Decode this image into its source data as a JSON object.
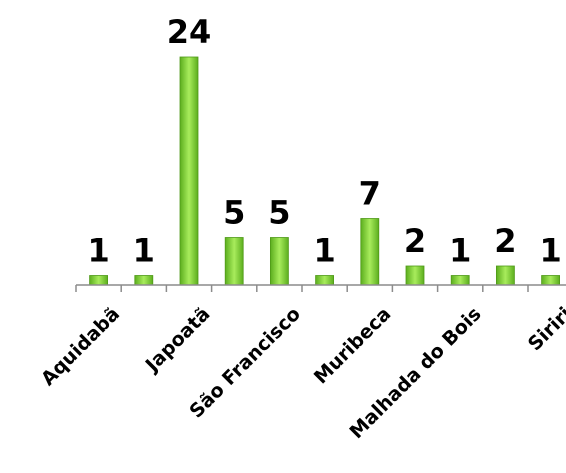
{
  "chart_data": {
    "type": "bar",
    "title": "",
    "xlabel": "",
    "ylabel": "",
    "categories": [
      "Aquidabã",
      "",
      "Japoatã",
      "",
      "São Francisco",
      "",
      "Muribeca",
      "",
      "Malhada do Bois",
      "",
      "Siriri"
    ],
    "values": [
      1,
      1,
      24,
      5,
      5,
      1,
      7,
      2,
      1,
      2,
      1
    ],
    "data_labels": [
      "1",
      "1",
      "24",
      "5",
      "5",
      "1",
      "7",
      "2",
      "1",
      "2",
      "1"
    ],
    "ylim": [
      0,
      24
    ],
    "grid": false,
    "legend": "none",
    "colors": {
      "bar_light": "#a8ec5c",
      "bar_dark": "#5cae1e",
      "bar_stroke": "#4f9a18",
      "axis": "#8c8c8c"
    }
  }
}
